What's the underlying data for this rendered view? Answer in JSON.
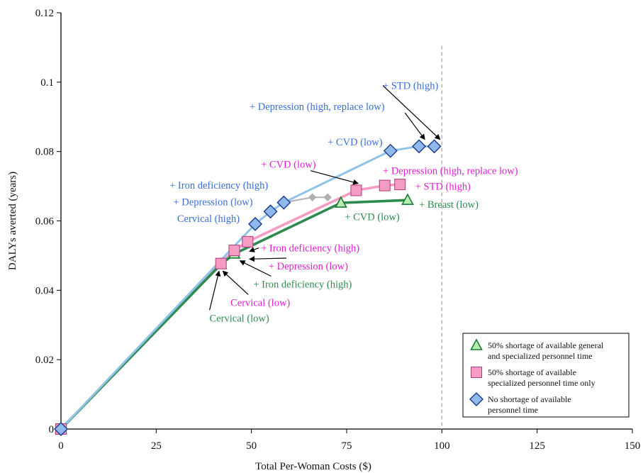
{
  "chart_data": {
    "type": "line",
    "xlabel": "Total Per-Woman Costs ($)",
    "ylabel": "DALYs averted (years)",
    "xlim": [
      0,
      150
    ],
    "ylim": [
      0,
      0.12
    ],
    "xticks": [
      "0",
      "25",
      "50",
      "75",
      "100",
      "125",
      "150"
    ],
    "yticks": [
      "0",
      "0.02",
      "0.04",
      "0.06",
      "0.08",
      "0.1",
      "0.12"
    ],
    "xtick_values": [
      0,
      25,
      50,
      75,
      100,
      125,
      150
    ],
    "ytick_values": [
      0,
      0.02,
      0.04,
      0.06,
      0.08,
      0.1,
      0.12
    ],
    "grid": false,
    "legend_position": "bottom-right",
    "reference_line_x": 100,
    "series": [
      {
        "name": "50% shortage of available general and specialized personnel time",
        "legend_lines": [
          "50% shortage of available general",
          "and specialized personnel time"
        ],
        "marker": "triangle",
        "color": "#2e8b4f",
        "fill": "#b8ecb0",
        "x": [
          0,
          42,
          45.5,
          73.5,
          91
        ],
        "y": [
          0,
          0.0475,
          0.0505,
          0.0652,
          0.066
        ]
      },
      {
        "name": "50% shortage of available specialized personnel time only",
        "legend_lines": [
          "50% shortage of available",
          "specialized personnel time only"
        ],
        "marker": "square",
        "color": "#f59cc4",
        "fill": "#f59cc4",
        "x": [
          0,
          42,
          45.5,
          49,
          77.5,
          85,
          89
        ],
        "y": [
          0,
          0.0477,
          0.0515,
          0.054,
          0.0688,
          0.0702,
          0.0705
        ]
      },
      {
        "name": "No shortage of available personnel time",
        "legend_lines": [
          "No shortage of available",
          "personnel time"
        ],
        "marker": "diamond",
        "color": "#8fc3e8",
        "fill": "#8fb9ec",
        "x": [
          0,
          51,
          55,
          58.5,
          86.5,
          94,
          98
        ],
        "y": [
          0,
          0.0591,
          0.0627,
          0.0653,
          0.0802,
          0.0815,
          0.0815
        ]
      },
      {
        "name": "",
        "marker": "small-diamond",
        "color": "#b0b0b0",
        "fill": "#b0b0b0",
        "x": [
          58.5,
          66,
          70
        ],
        "y": [
          0.0653,
          0.0668,
          0.0668
        ]
      }
    ],
    "annotations": [
      {
        "text": "+ STD (high)",
        "color": "#3a6fd8",
        "tx": 84.5,
        "ty": 0.098,
        "ax": 99.5,
        "ay": 0.0835,
        "anchor": "start"
      },
      {
        "text": "+ Depression (high, replace low)",
        "color": "#3a6fd8",
        "tx": 49.5,
        "ty": 0.092,
        "ax": 95.5,
        "ay": 0.0835,
        "anchor": "start"
      },
      {
        "text": "+ CVD (low)",
        "color": "#3a6fd8",
        "tx": 70,
        "ty": 0.0818,
        "anchor": "start"
      },
      {
        "text": "+ Iron deficiency (high)",
        "color": "#3a6fd8",
        "tx": 28.5,
        "ty": 0.0693,
        "anchor": "start"
      },
      {
        "text": "+ Depression (low)",
        "color": "#3a6fd8",
        "tx": 29.5,
        "ty": 0.0645,
        "anchor": "start"
      },
      {
        "text": "Cervical (high)",
        "color": "#3a6fd8",
        "tx": 30.5,
        "ty": 0.0597,
        "anchor": "start"
      },
      {
        "text": "+ CVD (low)",
        "color": "#e020d0",
        "tx": 52.5,
        "ty": 0.0753,
        "ax": 78,
        "ay": 0.0708,
        "anchor": "start"
      },
      {
        "text": "+ Depression (high, replace low)",
        "color": "#e020d0",
        "tx": 84.5,
        "ty": 0.0735,
        "anchor": "start"
      },
      {
        "text": "+ STD (high)",
        "color": "#e020d0",
        "tx": 93,
        "ty": 0.069,
        "anchor": "start"
      },
      {
        "text": "+ Breast (low)",
        "color": "#2e8b4f",
        "tx": 94,
        "ty": 0.0638,
        "anchor": "start"
      },
      {
        "text": "+ CVD (low)",
        "color": "#2e8b4f",
        "tx": 74.5,
        "ty": 0.0602,
        "anchor": "start"
      },
      {
        "text": "+ Iron deficiency (high)",
        "color": "#e020d0",
        "tx": 52.5,
        "ty": 0.0512,
        "ax": 49.5,
        "ay": 0.0512,
        "anchor": "start"
      },
      {
        "text": "+ Depression (low)",
        "color": "#e020d0",
        "tx": 54.5,
        "ty": 0.046,
        "ax": 49.5,
        "ay": 0.049,
        "anchor": "start"
      },
      {
        "text": "+ Iron deficiency (high)",
        "color": "#2e8b4f",
        "tx": 50.5,
        "ty": 0.0408,
        "ax": 47,
        "ay": 0.0485,
        "anchor": "start"
      },
      {
        "text": "Cervical (low)",
        "color": "#e020d0",
        "tx": 44.5,
        "ty": 0.0355,
        "ax": 42.5,
        "ay": 0.0455,
        "anchor": "start"
      },
      {
        "text": "Cervical (low)",
        "color": "#2e8b4f",
        "tx": 39,
        "ty": 0.031,
        "ax": 41.5,
        "ay": 0.0455,
        "anchor": "start"
      }
    ]
  }
}
